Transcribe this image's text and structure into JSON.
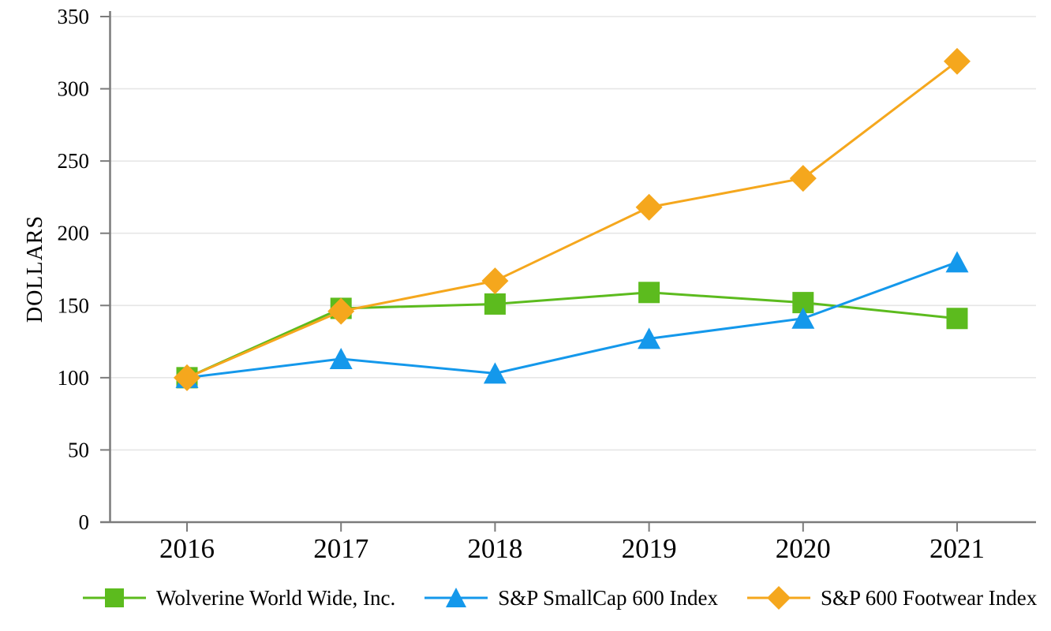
{
  "chart_data": {
    "type": "line",
    "title": "",
    "ylabel": "DOLLARS",
    "xlabel": "",
    "categories": [
      "2016",
      "2017",
      "2018",
      "2019",
      "2020",
      "2021"
    ],
    "y_ticks": [
      0,
      50,
      100,
      150,
      200,
      250,
      300,
      350
    ],
    "ylim": [
      0,
      350
    ],
    "grid": true,
    "legend_position": "bottom",
    "series": [
      {
        "name": "Wolverine World Wide, Inc.",
        "marker": "square",
        "color": "#5CBB1E",
        "values": [
          100,
          148,
          151,
          159,
          152,
          141
        ]
      },
      {
        "name": "S&P SmallCap 600 Index",
        "marker": "triangle",
        "color": "#1498EB",
        "values": [
          100,
          113,
          103,
          127,
          141,
          180
        ]
      },
      {
        "name": "S&P 600 Footwear Index",
        "marker": "diamond",
        "color": "#F5A71D",
        "values": [
          100,
          146,
          167,
          218,
          238,
          319
        ]
      }
    ],
    "colors": {
      "axis": "#7b7b7b",
      "grid": "#e6e6e6",
      "text": "#000000"
    }
  }
}
